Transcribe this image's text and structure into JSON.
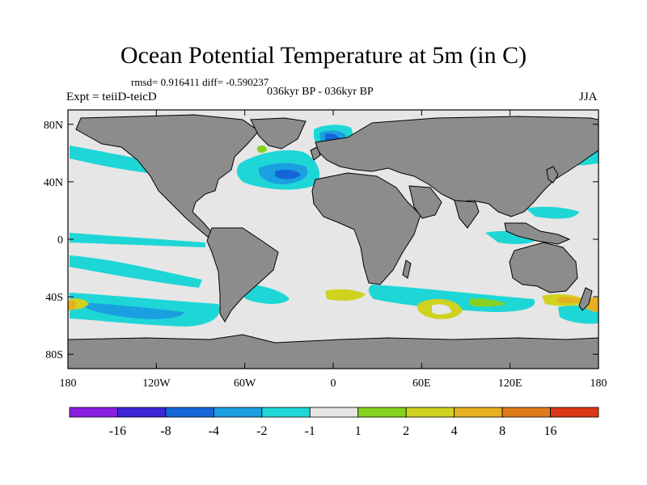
{
  "title": "Ocean Potential Temperature at 5m (in C)",
  "stats_line": "rmsd= 0.916411 diff= -0.590237",
  "period_line": "036kyr BP - 036kyr BP",
  "experiment_line": "Expt = teiiD-teicD",
  "season": "JJA",
  "map": {
    "lat_labels": [
      {
        "lat": 80,
        "text": "80N"
      },
      {
        "lat": 40,
        "text": "40N"
      },
      {
        "lat": 0,
        "text": "0"
      },
      {
        "lat": -40,
        "text": "40S"
      },
      {
        "lat": -80,
        "text": "80S"
      }
    ],
    "lon_labels": [
      {
        "lon": -180,
        "text": "180"
      },
      {
        "lon": -120,
        "text": "120W"
      },
      {
        "lon": -60,
        "text": "60W"
      },
      {
        "lon": 0,
        "text": "0"
      },
      {
        "lon": 60,
        "text": "60E"
      },
      {
        "lon": 120,
        "text": "120E"
      },
      {
        "lon": 180,
        "text": "180"
      }
    ],
    "colors": {
      "ocean_neutral": "#e6e6e6",
      "land": "#8c8c8c",
      "coast": "#000000"
    }
  },
  "colorbar": {
    "colors": [
      "#8a1fe0",
      "#3c27d6",
      "#1565d8",
      "#1a9fe0",
      "#1fd6d6",
      "#e6e6e6",
      "#86d11f",
      "#cfd21f",
      "#e6b020",
      "#e07b19",
      "#db3818"
    ],
    "labels": [
      "-16",
      "-8",
      "-4",
      "-2",
      "-1",
      "1",
      "2",
      "4",
      "8",
      "16"
    ]
  }
}
